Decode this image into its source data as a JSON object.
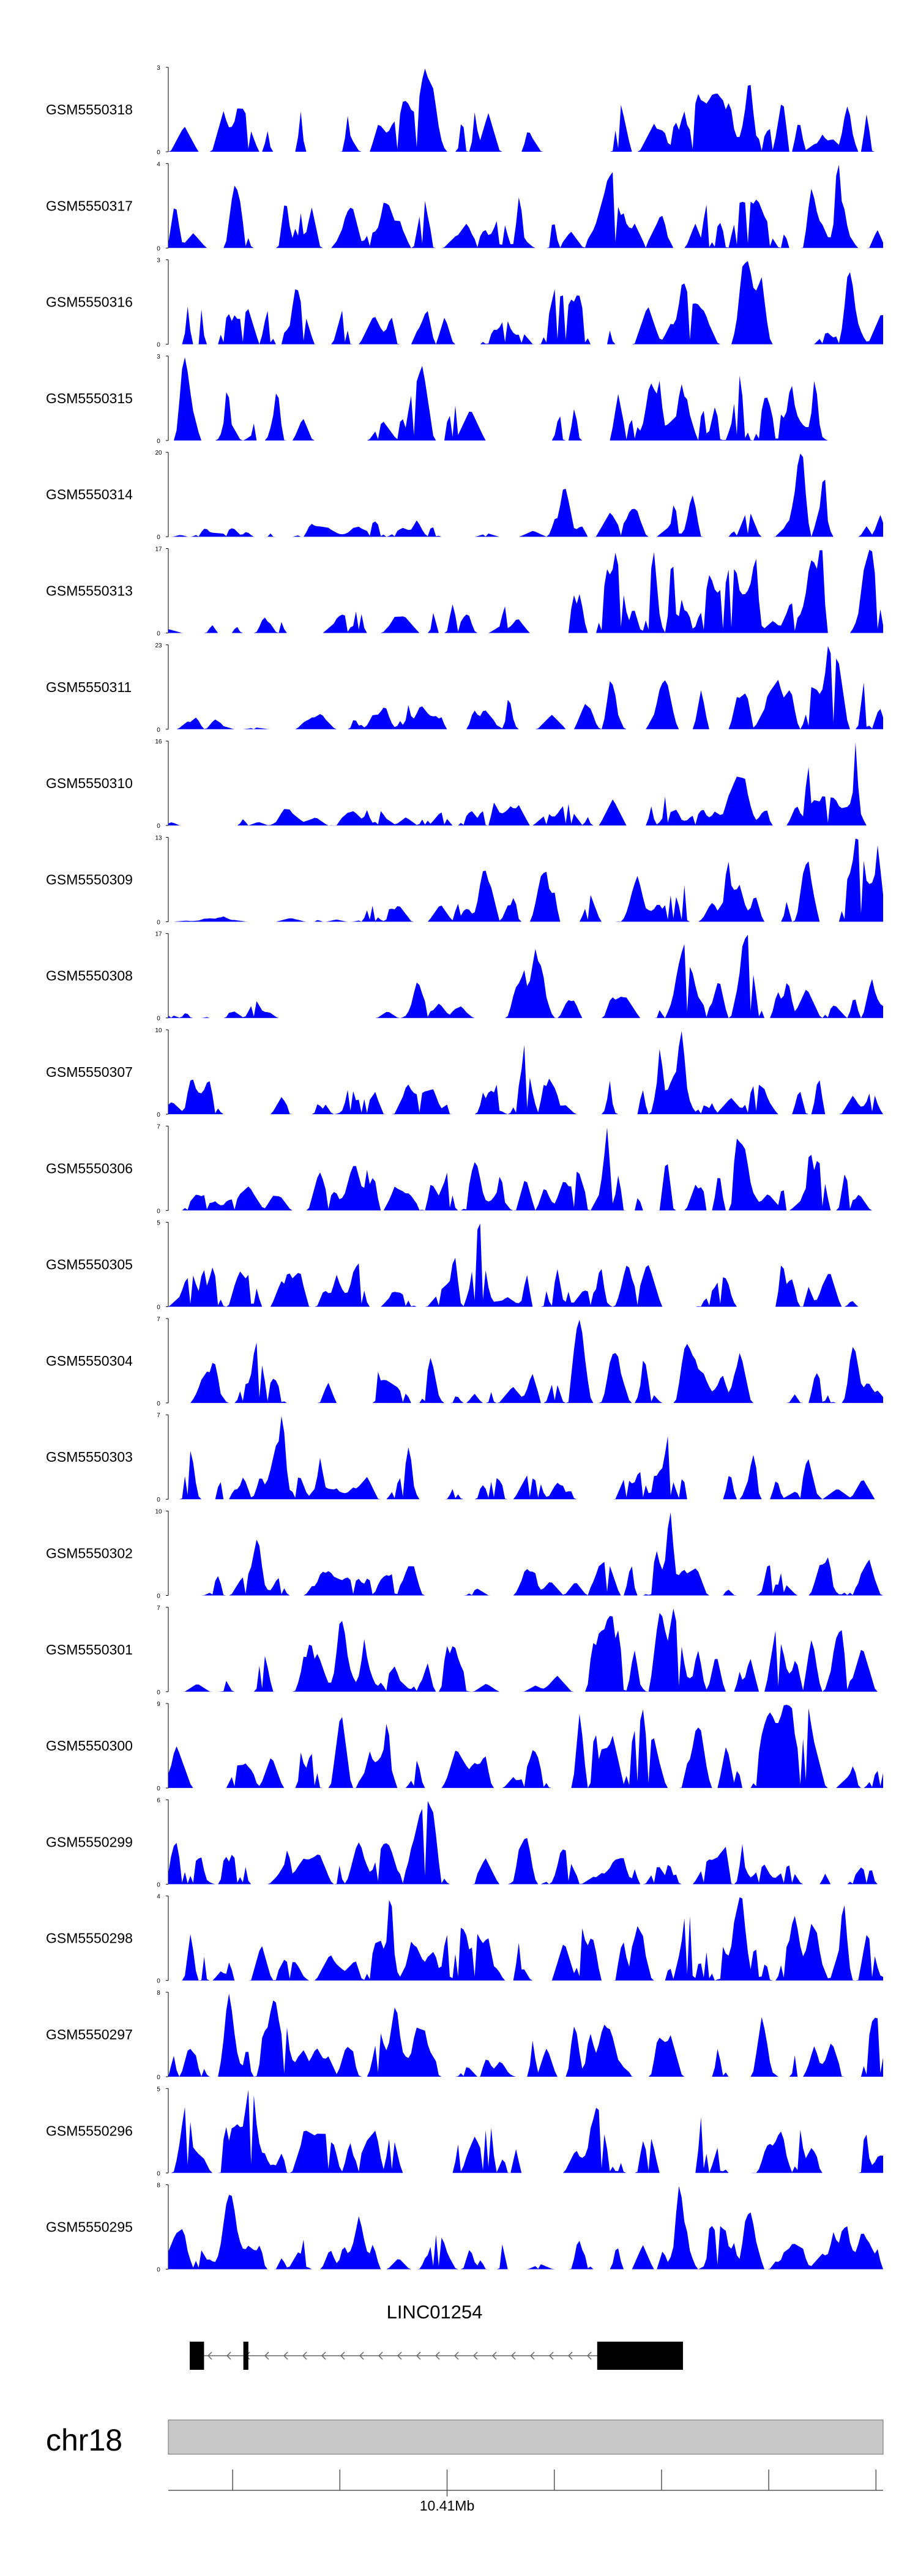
{
  "chart_data": {
    "type": "area",
    "color": "#0000ff",
    "tracks": [
      {
        "name": "GSM5550318",
        "ymax": "3",
        "ymin": "0",
        "seed": 1,
        "shape": "flat",
        "ratio": 0.55
      },
      {
        "name": "GSM5550317",
        "ymax": "4",
        "ymin": "0",
        "seed": 2,
        "shape": "flat",
        "ratio": 0.6
      },
      {
        "name": "GSM5550316",
        "ymax": "3",
        "ymin": "0",
        "seed": 3,
        "shape": "flat",
        "ratio": 0.65
      },
      {
        "name": "GSM5550315",
        "ymax": "3",
        "ymin": "0",
        "seed": 4,
        "shape": "flat",
        "ratio": 0.6
      },
      {
        "name": "GSM5550314",
        "ymax": "20",
        "ymin": "0",
        "seed": 5,
        "shape": "ramp",
        "ratio": 0.35
      },
      {
        "name": "GSM5550313",
        "ymax": "17",
        "ymin": "0",
        "seed": 6,
        "shape": "ramp",
        "ratio": 0.35
      },
      {
        "name": "GSM5550311",
        "ymax": "23",
        "ymin": "0",
        "seed": 7,
        "shape": "ramp",
        "ratio": 0.35
      },
      {
        "name": "GSM5550310",
        "ymax": "16",
        "ymin": "0",
        "seed": 8,
        "shape": "ramp",
        "ratio": 0.4
      },
      {
        "name": "GSM5550309",
        "ymax": "13",
        "ymin": "0",
        "seed": 9,
        "shape": "ramp",
        "ratio": 0.4
      },
      {
        "name": "GSM5550308",
        "ymax": "17",
        "ymin": "0",
        "seed": 10,
        "shape": "ramp",
        "ratio": 0.4
      },
      {
        "name": "GSM5550307",
        "ymax": "10",
        "ymin": "0",
        "seed": 11,
        "shape": "mixed",
        "ratio": 0.45
      },
      {
        "name": "GSM5550306",
        "ymax": "7",
        "ymin": "0",
        "seed": 12,
        "shape": "mixed",
        "ratio": 0.5
      },
      {
        "name": "GSM5550305",
        "ymax": "5",
        "ymin": "0",
        "seed": 13,
        "shape": "flat",
        "ratio": 0.55
      },
      {
        "name": "GSM5550304",
        "ymax": "7",
        "ymin": "0",
        "seed": 14,
        "shape": "flat",
        "ratio": 0.55
      },
      {
        "name": "GSM5550303",
        "ymax": "7",
        "ymin": "0",
        "seed": 15,
        "shape": "flat",
        "ratio": 0.55
      },
      {
        "name": "GSM5550302",
        "ymax": "10",
        "ymin": "0",
        "seed": 16,
        "shape": "mixed",
        "ratio": 0.45
      },
      {
        "name": "GSM5550301",
        "ymax": "7",
        "ymin": "0",
        "seed": 17,
        "shape": "mixed",
        "ratio": 0.45
      },
      {
        "name": "GSM5550300",
        "ymax": "9",
        "ymin": "0",
        "seed": 18,
        "shape": "mixed",
        "ratio": 0.45
      },
      {
        "name": "GSM5550299",
        "ymax": "6",
        "ymin": "0",
        "seed": 19,
        "shape": "flat",
        "ratio": 0.6
      },
      {
        "name": "GSM5550298",
        "ymax": "4",
        "ymin": "0",
        "seed": 20,
        "shape": "flat",
        "ratio": 0.6
      },
      {
        "name": "GSM5550297",
        "ymax": "8",
        "ymin": "0",
        "seed": 21,
        "shape": "mixed",
        "ratio": 0.4
      },
      {
        "name": "GSM5550296",
        "ymax": "5",
        "ymin": "0",
        "seed": 22,
        "shape": "flat",
        "ratio": 0.55
      },
      {
        "name": "GSM5550295",
        "ymax": "8",
        "ymin": "0",
        "seed": 23,
        "shape": "mixed",
        "ratio": 0.45
      }
    ],
    "gene": {
      "name": "LINC01254",
      "strand": "-",
      "exons": [
        [
          0.03,
          0.05
        ],
        [
          0.105,
          0.112
        ],
        [
          0.6,
          0.72
        ]
      ]
    },
    "chromosome": "chr18",
    "axis": {
      "tick_label": "10.41Mb",
      "tick_label_pos": 0.39,
      "ticks": [
        0.09,
        0.24,
        0.39,
        0.54,
        0.69,
        0.84,
        0.99
      ]
    }
  }
}
